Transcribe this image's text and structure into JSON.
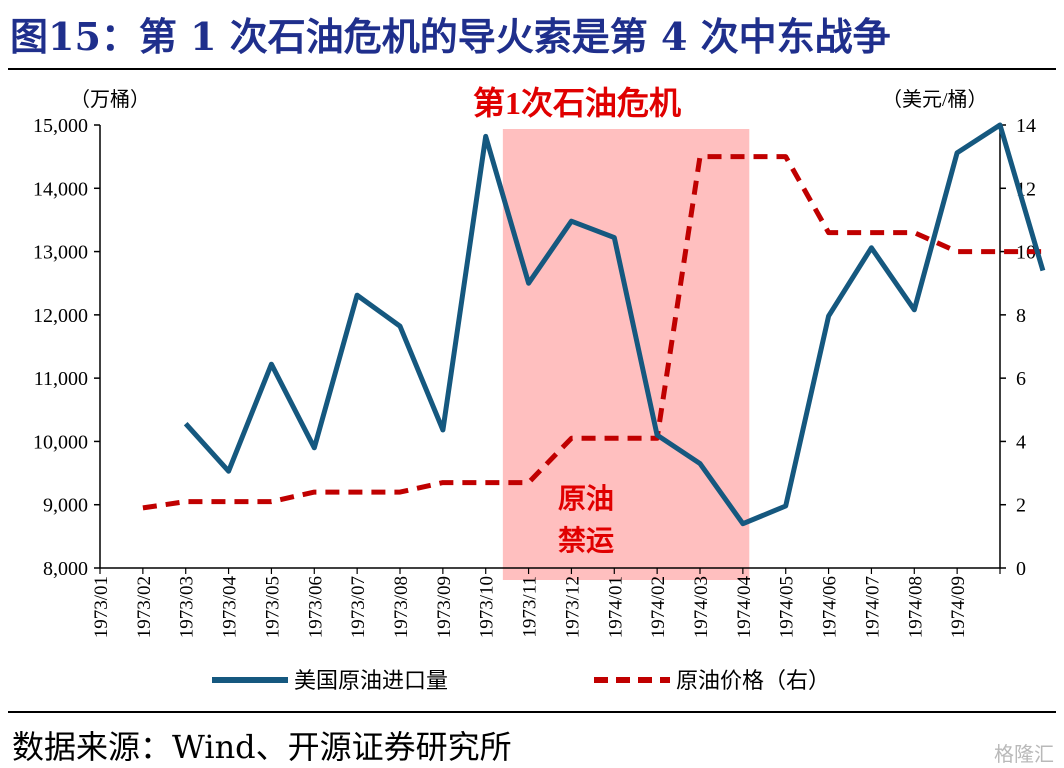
{
  "figure_title": "图15：第 1 次石油危机的导火索是第 4 次中东战争",
  "source_text": "数据来源：Wind、开源证券研究所",
  "watermark": "格隆汇",
  "chart_data": {
    "type": "line",
    "left_unit": "（万桶）",
    "right_unit": "（美元/桶）",
    "categories": [
      "1973/01",
      "1973/02",
      "1973/03",
      "1973/04",
      "1973/05",
      "1973/06",
      "1973/07",
      "1973/08",
      "1973/09",
      "1973/10",
      "1973/11",
      "1973/12",
      "1974/01",
      "1974/02",
      "1974/03",
      "1974/04",
      "1974/05",
      "1974/06",
      "1974/07",
      "1974/08",
      "1974/09"
    ],
    "left_axis": {
      "min": 8000,
      "max": 15000,
      "step": 1000,
      "tick_labels": [
        "8,000",
        "9,000",
        "10,000",
        "11,000",
        "12,000",
        "13,000",
        "14,000",
        "15,000"
      ]
    },
    "right_axis": {
      "min": 0,
      "max": 14,
      "step": 2,
      "tick_labels": [
        "0",
        "2",
        "4",
        "6",
        "8",
        "10",
        "12",
        "14"
      ]
    },
    "series": [
      {
        "name": "美国原油进口量",
        "axis": "left",
        "color": "#15587f",
        "style": "solid",
        "points": [
          [
            1,
            10280
          ],
          [
            2,
            9530
          ],
          [
            3,
            11220
          ],
          [
            4,
            9900
          ],
          [
            5,
            12310
          ],
          [
            6,
            11820
          ],
          [
            7,
            10180
          ],
          [
            8,
            14820
          ],
          [
            9,
            12500
          ],
          [
            10,
            13480
          ],
          [
            11,
            13220
          ],
          [
            12,
            10100
          ],
          [
            13,
            9650
          ],
          [
            14,
            8700
          ],
          [
            15,
            8980
          ],
          [
            16,
            11980
          ],
          [
            17,
            13060
          ],
          [
            18,
            12080
          ],
          [
            19,
            14560
          ],
          [
            20,
            15000
          ],
          [
            21,
            12700
          ]
        ]
      },
      {
        "name": "原油价格（右）",
        "axis": "right",
        "color": "#c00000",
        "style": "dashed",
        "points": [
          [
            0,
            1.9
          ],
          [
            1,
            2.1
          ],
          [
            2,
            2.1
          ],
          [
            3,
            2.1
          ],
          [
            4,
            2.4
          ],
          [
            5,
            2.4
          ],
          [
            6,
            2.4
          ],
          [
            7,
            2.7
          ],
          [
            8,
            2.7
          ],
          [
            9,
            2.7
          ],
          [
            10,
            4.1
          ],
          [
            11,
            4.1
          ],
          [
            12,
            4.1
          ],
          [
            13,
            13.0
          ],
          [
            14,
            13.0
          ],
          [
            15,
            13.0
          ],
          [
            16,
            10.6
          ],
          [
            17,
            10.6
          ],
          [
            18,
            10.6
          ],
          [
            19,
            10.0
          ],
          [
            20,
            10.0
          ],
          [
            21,
            10.0
          ]
        ]
      }
    ],
    "shaded_region": {
      "from": "1973/10",
      "to": "1974/03",
      "color": "#ffbfbf"
    },
    "annotations": [
      {
        "text": "第1次石油危机",
        "color": "#e00000"
      },
      {
        "text": "原油",
        "color": "#e00000"
      },
      {
        "text": "禁运",
        "color": "#e00000"
      }
    ],
    "legend": {
      "placement": "bottom"
    },
    "grid": false
  }
}
